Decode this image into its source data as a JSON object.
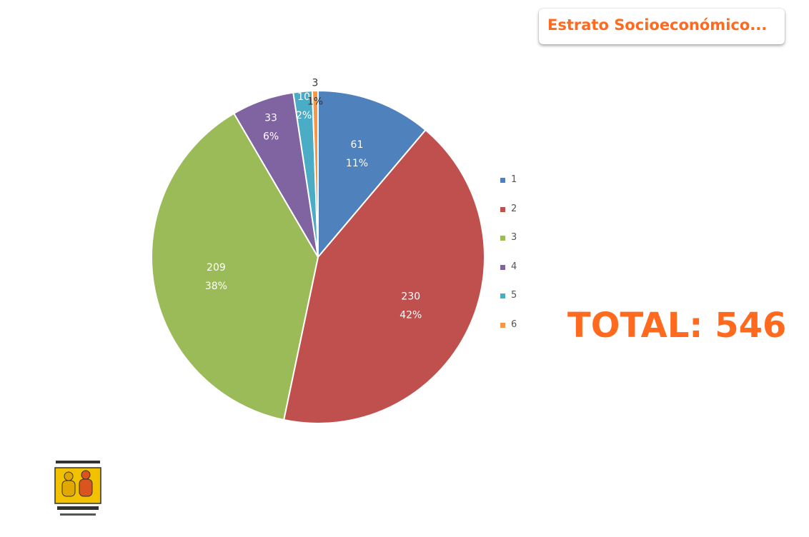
{
  "title": "Estrato Socioeconómico...",
  "total_text": "TOTAL: 546",
  "chart_data": {
    "type": "pie",
    "title": "Estrato Socioeconómico...",
    "legend_position": "right",
    "categories": [
      "1",
      "2",
      "3",
      "4",
      "5",
      "6"
    ],
    "values": [
      61,
      230,
      209,
      33,
      10,
      3
    ],
    "percent_labels": [
      "11%",
      "42%",
      "38%",
      "6%",
      "2%",
      "1%"
    ],
    "colors": [
      "#4f81bd",
      "#c0504d",
      "#9bbb59",
      "#8064a2",
      "#4bacc6",
      "#f79646"
    ]
  }
}
